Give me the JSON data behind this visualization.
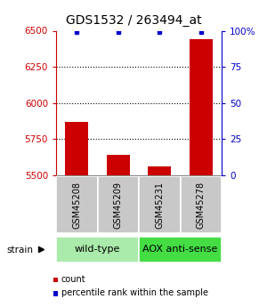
{
  "title": "GDS1532 / 263494_at",
  "samples": [
    "GSM45208",
    "GSM45209",
    "GSM45231",
    "GSM45278"
  ],
  "counts": [
    5870,
    5640,
    5560,
    6440
  ],
  "percentiles": [
    99,
    99,
    99,
    99
  ],
  "ylim_left": [
    5500,
    6500
  ],
  "ylim_right": [
    0,
    100
  ],
  "yticks_left": [
    5500,
    5750,
    6000,
    6250,
    6500
  ],
  "yticks_right": [
    0,
    25,
    50,
    75,
    100
  ],
  "groups": [
    {
      "label": "wild-type",
      "indices": [
        0,
        1
      ],
      "color": "#aaeaaa"
    },
    {
      "label": "AOX anti-sense",
      "indices": [
        2,
        3
      ],
      "color": "#44dd44"
    }
  ],
  "bar_color": "#cc0000",
  "dot_color": "#0000cc",
  "baseline": 5500,
  "bar_width": 0.55,
  "grid_color": "#000000",
  "left_tick_color": "#cc0000",
  "right_tick_color": "#0000cc",
  "title_fontsize": 10,
  "label_fontsize": 7,
  "legend_fontsize": 7,
  "group_label_fontsize": 8,
  "sample_box_color": "#c8c8c8",
  "grid_yticks": [
    5750,
    6000,
    6250
  ]
}
